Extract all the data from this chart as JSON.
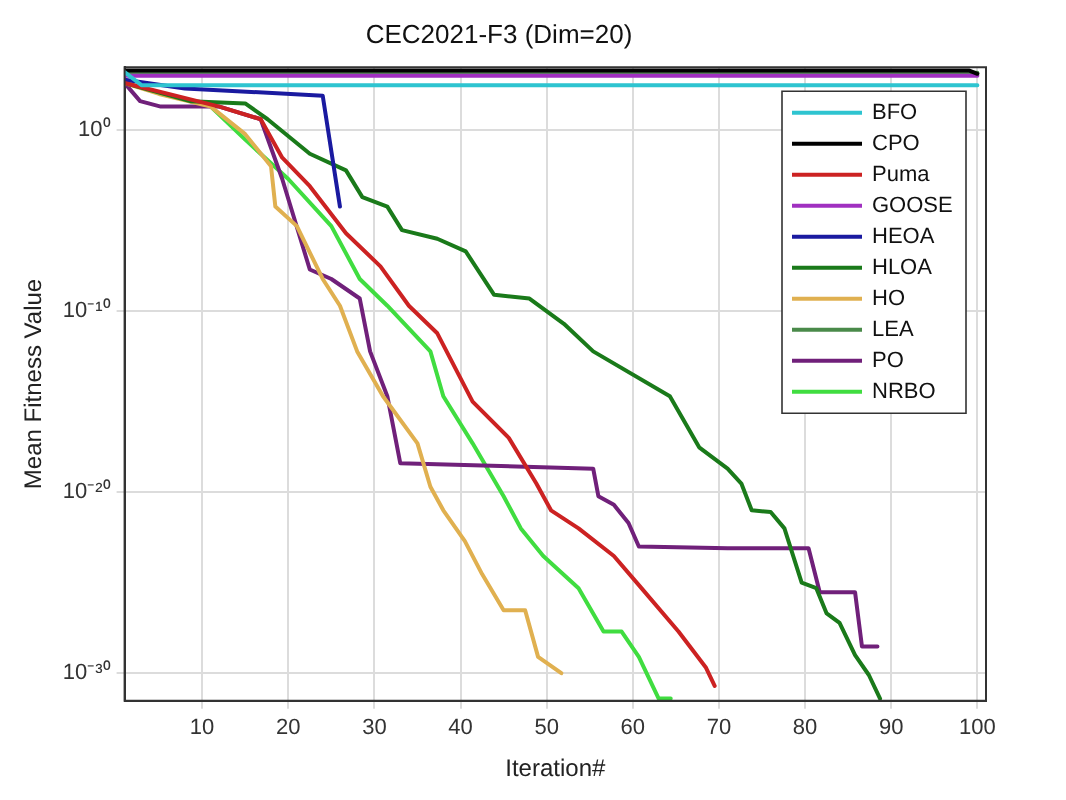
{
  "chart_data": {
    "type": "line",
    "title": "CEC2021-F3 (Dim=20)",
    "xlabel": "Iteration#",
    "ylabel": "Mean Fitness Value",
    "log": "y",
    "grid": true,
    "legend": "top right",
    "xlim": [
      1,
      101
    ],
    "xticks": [
      10,
      20,
      30,
      40,
      50,
      60,
      70,
      80,
      90,
      100
    ],
    "ylim": [
      3e-32,
      3000
    ],
    "yticks": [
      {
        "value": 1,
        "label": "10⁰"
      },
      {
        "value": 1e-10,
        "label": "10⁻¹⁰"
      },
      {
        "value": 1e-20,
        "label": "10⁻²⁰"
      },
      {
        "value": 1e-30,
        "label": "10⁻³⁰"
      }
    ],
    "series": [
      {
        "name": "BFO",
        "color": "#2ec4d0",
        "x": [
          1,
          3,
          100
        ],
        "values": [
          1600,
          300,
          300
        ]
      },
      {
        "name": "CPO",
        "color": "#000000",
        "x": [
          1,
          99,
          100
        ],
        "values": [
          2000,
          2000,
          1300
        ]
      },
      {
        "name": "Puma",
        "color": "#cc2222",
        "x": [
          1,
          12,
          16.8,
          19.3,
          22.5,
          26.7,
          30.7,
          34,
          37.3,
          41.4,
          45.6,
          48.8,
          50.5,
          53.7,
          57.8,
          61,
          65.3,
          68.5,
          69.5
        ],
        "values": [
          400,
          20,
          4,
          0.03,
          0.0008,
          2e-06,
          3e-08,
          2e-10,
          6e-12,
          1e-15,
          1e-17,
          3e-20,
          1e-21,
          1e-22,
          3e-24,
          5e-26,
          2e-28,
          2e-30,
          2e-31
        ]
      },
      {
        "name": "GOOSE",
        "color": "#a030c0",
        "x": [
          1,
          100
        ],
        "values": [
          1000,
          1000
        ]
      },
      {
        "name": "HEOA",
        "color": "#1a1aa0",
        "x": [
          1,
          8,
          24,
          26
        ],
        "values": [
          600,
          200,
          80,
          6e-05
        ]
      },
      {
        "name": "HLOA",
        "color": "#1a7a1a",
        "x": [
          1,
          8.6,
          15,
          17.6,
          22.5,
          26.7,
          28.6,
          31.5,
          33.2,
          37.3,
          40.6,
          43.9,
          48,
          52,
          55.4,
          64.3,
          67.7,
          71,
          72.6,
          73.8,
          76,
          77.6,
          79.6,
          81.3,
          82.5,
          84,
          85.8,
          87.4,
          88.7
        ],
        "values": [
          400,
          40,
          30,
          4,
          0.05,
          0.006,
          0.0002,
          6e-05,
          3e-06,
          1e-06,
          2e-07,
          8e-10,
          5e-10,
          2e-11,
          6e-13,
          2e-15,
          3e-18,
          2e-19,
          3e-20,
          1e-21,
          8e-22,
          1e-22,
          1e-25,
          5e-26,
          2e-27,
          6e-28,
          1e-29,
          8e-31,
          4e-32
        ]
      },
      {
        "name": "HO",
        "color": "#e0b050",
        "x": [
          1,
          5,
          11,
          15,
          18,
          18.5,
          21,
          24,
          26,
          28,
          31,
          35,
          36.5,
          38,
          40.5,
          42.5,
          45,
          47.5,
          49,
          51.7
        ],
        "values": [
          400,
          100,
          20,
          0.6,
          0.01,
          6e-05,
          5e-06,
          6e-09,
          2e-10,
          6e-13,
          2e-15,
          5e-18,
          2e-20,
          1e-21,
          2e-23,
          3e-25,
          3e-27,
          3e-27,
          8e-30,
          1e-30
        ]
      },
      {
        "name": "LEA",
        "color": "#4a8a4a",
        "x": [
          1,
          100
        ],
        "values": [
          1500,
          1500
        ]
      },
      {
        "name": "PO",
        "color": "#70207a",
        "x": [
          1,
          2.8,
          5.2,
          12,
          16.8,
          19.3,
          22.5,
          25,
          28.3,
          29.5,
          31.5,
          33,
          55.4,
          56,
          57.8,
          59.5,
          60.7,
          71,
          80.4,
          81.7,
          85.8,
          86.6,
          88.4
        ],
        "values": [
          400,
          40,
          20,
          20,
          4,
          0.002,
          2e-08,
          6e-09,
          5e-10,
          6e-13,
          2e-15,
          4e-19,
          2e-19,
          6e-21,
          2e-21,
          2e-22,
          1e-23,
          8e-24,
          8e-24,
          3e-26,
          3e-26,
          3e-29,
          3e-29
        ]
      },
      {
        "name": "NRBO",
        "color": "#40dd40",
        "x": [
          11,
          15,
          20,
          25,
          28.3,
          31.5,
          36.5,
          38,
          41.4,
          45,
          47,
          49.6,
          53.7,
          56.6,
          58.7,
          60.7,
          63,
          64.4
        ],
        "values": [
          20,
          0.3,
          0.002,
          5e-06,
          6e-09,
          2e-10,
          6e-13,
          2e-15,
          5e-18,
          6e-21,
          1e-22,
          3e-24,
          5e-26,
          2e-28,
          2e-28,
          8e-30,
          4e-32,
          4e-32
        ]
      }
    ]
  }
}
